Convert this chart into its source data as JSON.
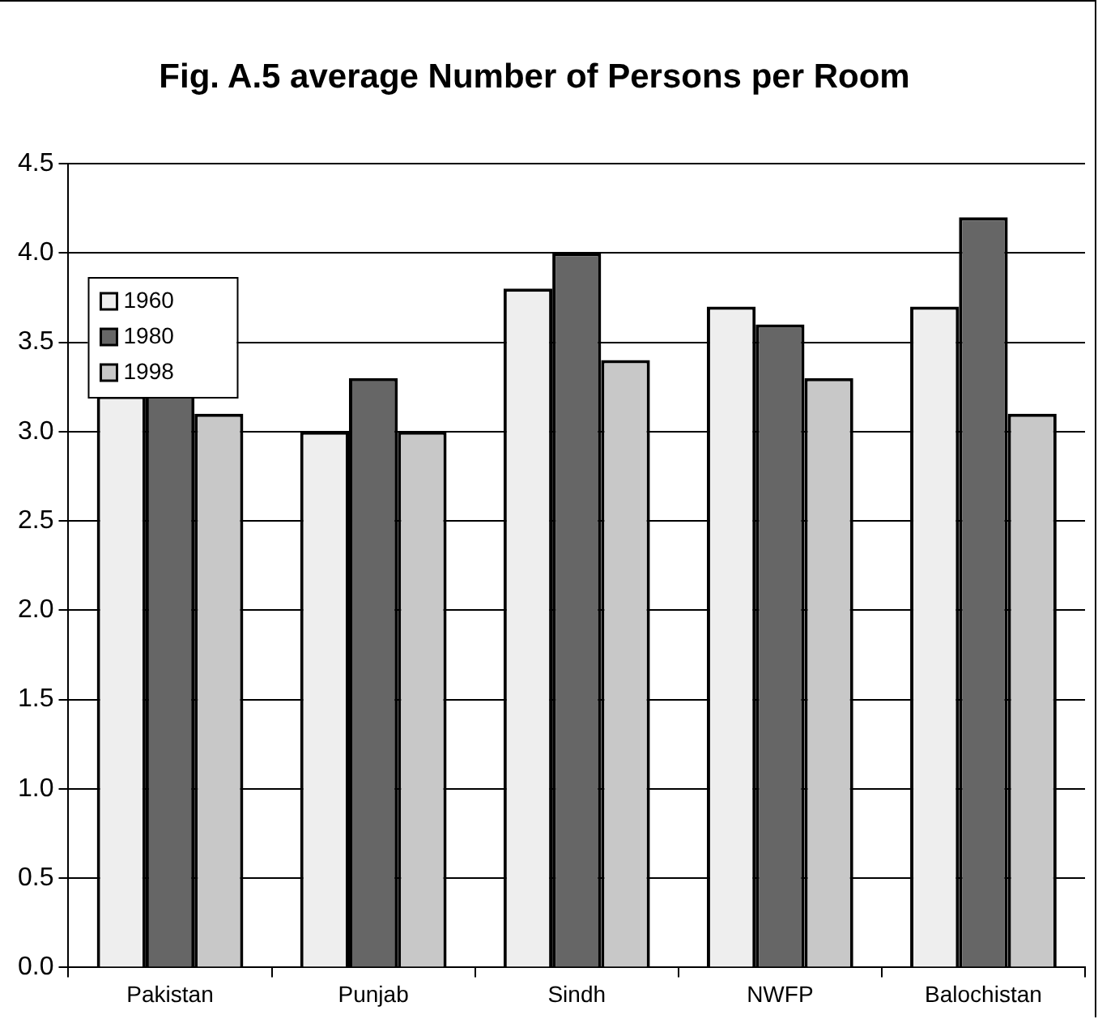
{
  "chart_data": {
    "type": "bar",
    "title": "Fig. A.5 average Number of Persons per Room",
    "categories": [
      "Pakistan",
      "Punjab",
      "Sindh",
      "NWFP",
      "Balochistan"
    ],
    "series": [
      {
        "name": "1960",
        "color": "#eeeeee",
        "values": [
          3.2,
          3.0,
          3.8,
          3.7,
          3.7
        ]
      },
      {
        "name": "1980",
        "color": "#666666",
        "values": [
          3.6,
          3.3,
          4.0,
          3.6,
          4.2
        ]
      },
      {
        "name": "1998",
        "color": "#c8c8c8",
        "values": [
          3.1,
          3.0,
          3.4,
          3.3,
          3.1
        ]
      }
    ],
    "ylim": [
      0,
      4.5
    ],
    "yticks": [
      {
        "value": 0,
        "label": "0.0"
      },
      {
        "value": 0.5,
        "label": "0.5"
      },
      {
        "value": 1,
        "label": "1.0"
      },
      {
        "value": 1.5,
        "label": "1.5"
      },
      {
        "value": 2,
        "label": "2.0"
      },
      {
        "value": 2.5,
        "label": "2.5"
      },
      {
        "value": 3,
        "label": "3.0"
      },
      {
        "value": 3.5,
        "label": "3.5"
      },
      {
        "value": 4,
        "label": "4.0"
      },
      {
        "value": 4.5,
        "label": "4.5"
      }
    ],
    "grid": "y",
    "legend": "top left"
  }
}
